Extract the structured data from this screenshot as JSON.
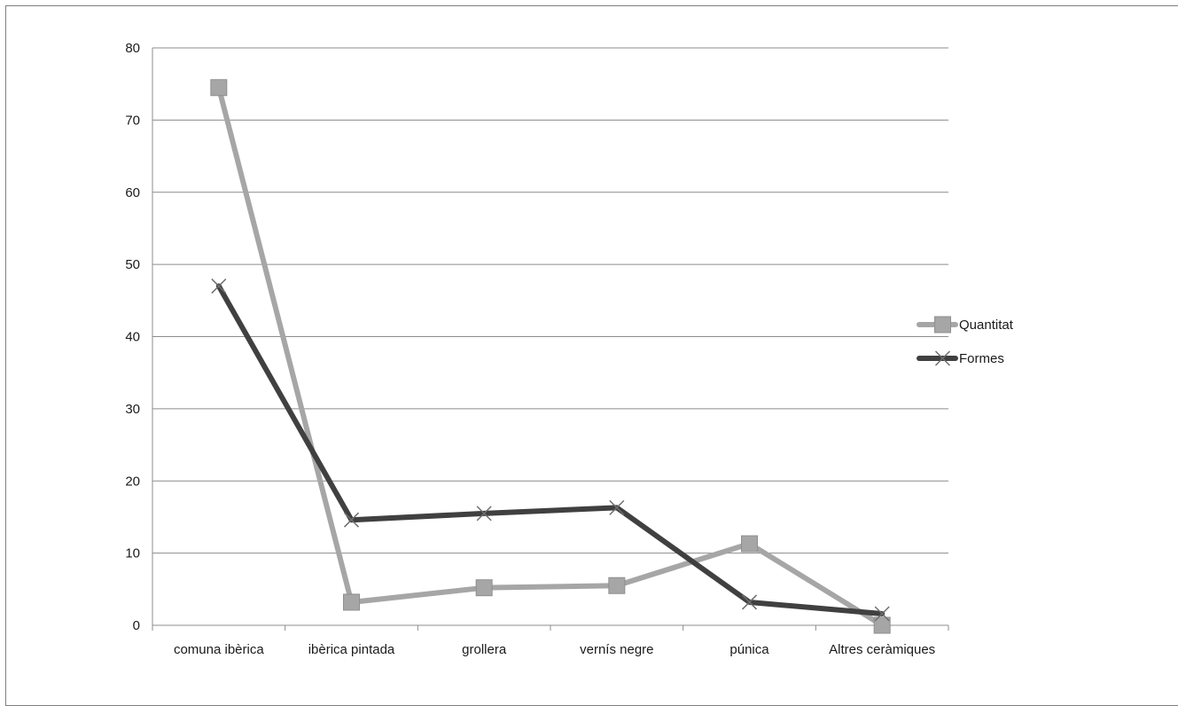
{
  "chart_data": {
    "type": "line",
    "title": "",
    "xlabel": "",
    "ylabel": "",
    "categories": [
      "comuna ibèrica",
      "ibèrica pintada",
      "grollera",
      "vernís negre",
      "púnica",
      "Altres ceràmiques"
    ],
    "ylim": [
      0,
      80
    ],
    "yticks": [
      0,
      10,
      20,
      30,
      40,
      50,
      60,
      70,
      80
    ],
    "grid": true,
    "legend_position": "right",
    "series": [
      {
        "name": "Quantitat",
        "values": [
          74.5,
          3.2,
          5.2,
          5.5,
          11.3,
          0
        ],
        "color": "#a6a6a6",
        "marker": "square"
      },
      {
        "name": "Formes",
        "values": [
          47,
          14.6,
          15.5,
          16.3,
          3.2,
          1.6
        ],
        "color": "#404040",
        "marker": "x"
      }
    ]
  }
}
